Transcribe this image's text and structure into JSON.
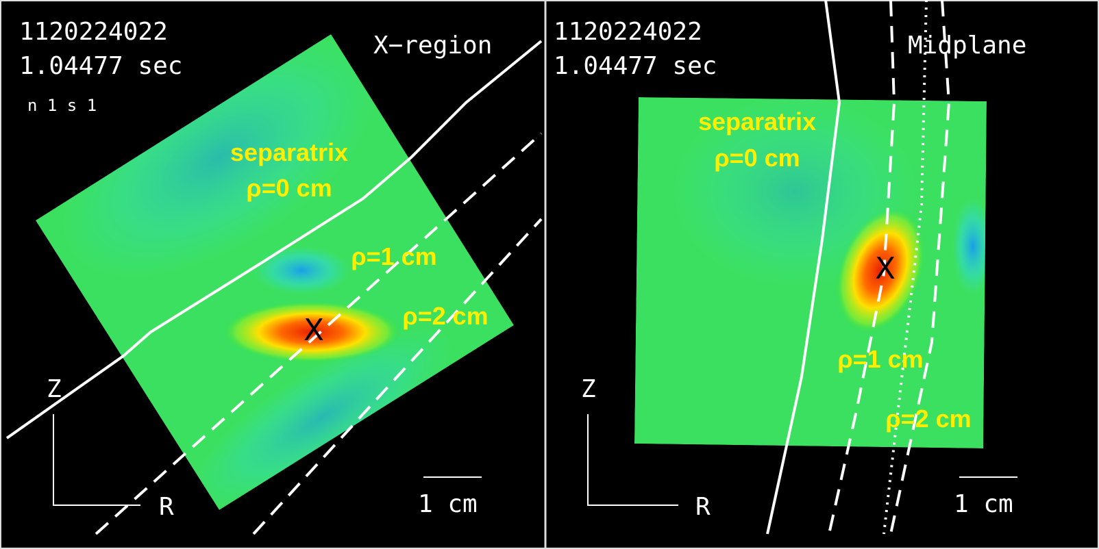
{
  "panels": [
    {
      "shot": "1120224022",
      "time": "1.04477  sec",
      "frame": "n 1  s 1",
      "view": "X−region",
      "labels": {
        "separatrix": "separatrix",
        "rho0": "ρ=0 cm",
        "rho1": "ρ=1 cm",
        "rho2": "ρ=2 cm"
      },
      "marker": "X",
      "axis_z": "Z",
      "axis_r": "R",
      "scale": "1 cm"
    },
    {
      "shot": "1120224022",
      "time": "1.04477  sec",
      "view": "Midplane",
      "labels": {
        "separatrix": "separatrix",
        "rho0": "ρ=0 cm",
        "rho1": "ρ=1 cm",
        "rho2": "ρ=2 cm"
      },
      "marker": "X",
      "axis_z": "Z",
      "axis_r": "R",
      "scale": "1 cm"
    }
  ]
}
